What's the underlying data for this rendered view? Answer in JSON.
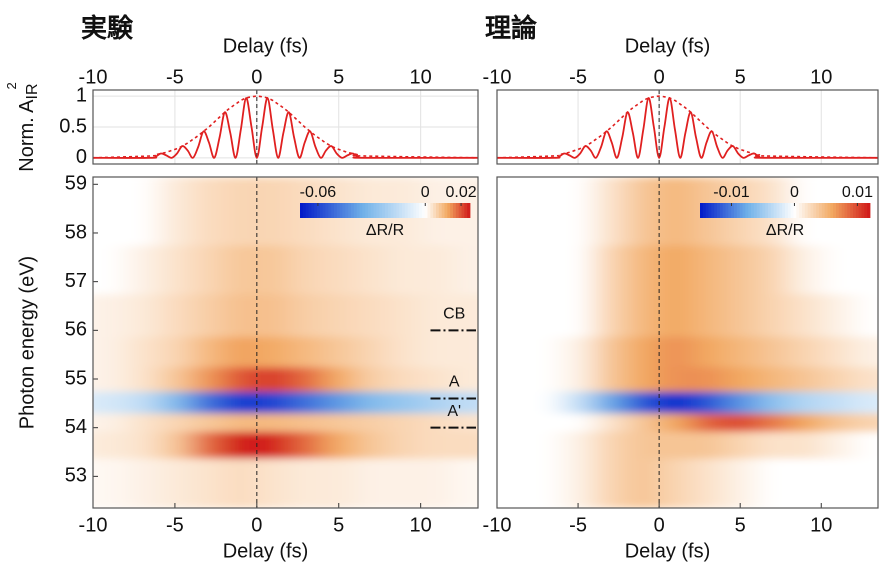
{
  "chart_data": [
    {
      "type": "line",
      "title": "実験",
      "xlabel": "Delay (fs)",
      "ylabel": "Norm. A",
      "ylabel_sub": "IR",
      "ylabel_sup": "2",
      "xlim": [
        -10,
        13.5
      ],
      "xticks": [
        -10,
        -5,
        0,
        5,
        10
      ],
      "ylim": [
        -0.1,
        1.1
      ],
      "yticks": [
        0,
        0.5,
        1
      ],
      "grid": true,
      "vline": 0,
      "x": [
        -10,
        -6.5,
        -6.175,
        -5.85,
        -5.525,
        -5.2,
        -4.875,
        -4.55,
        -4.225,
        -3.9,
        -3.575,
        -3.25,
        -2.925,
        -2.6,
        -2.275,
        -1.95,
        -1.625,
        -1.3,
        -0.975,
        -0.65,
        -0.325,
        0,
        0.325,
        0.65,
        0.975,
        1.3,
        1.625,
        1.95,
        2.275,
        2.6,
        2.925,
        3.25,
        3.575,
        3.9,
        4.225,
        4.55,
        4.875,
        5.2,
        5.525,
        5.85,
        6.175,
        6.5,
        13.5
      ],
      "series": [
        {
          "color": "#e02020",
          "values": [
            0,
            0,
            0.02,
            0.07,
            0.04,
            0,
            0.07,
            0.19,
            0.12,
            0,
            0.18,
            0.43,
            0.25,
            0,
            0.33,
            0.74,
            0.41,
            0,
            0.46,
            0.97,
            0.5,
            0,
            0.5,
            0.97,
            0.46,
            0,
            0.41,
            0.74,
            0.33,
            0,
            0.25,
            0.43,
            0.18,
            0,
            0.12,
            0.19,
            0.07,
            0,
            0.04,
            0.07,
            0.02,
            0,
            0
          ]
        },
        {
          "color": "#e02020",
          "dash": true,
          "values": [
            0,
            0.03,
            0.05,
            0.07,
            0.09,
            0.12,
            0.15,
            0.19,
            0.24,
            0.3,
            0.36,
            0.43,
            0.5,
            0.58,
            0.66,
            0.74,
            0.81,
            0.87,
            0.93,
            0.97,
            0.99,
            1,
            0.99,
            0.97,
            0.93,
            0.87,
            0.81,
            0.74,
            0.66,
            0.58,
            0.5,
            0.43,
            0.36,
            0.3,
            0.24,
            0.19,
            0.15,
            0.12,
            0.09,
            0.07,
            0.05,
            0.03,
            0
          ]
        }
      ]
    },
    {
      "type": "heatmap",
      "xlabel": "Delay (fs)",
      "ylabel": "Photon energy (eV)",
      "xlim": [
        -10,
        13.5
      ],
      "xticks": [
        -10,
        -5,
        0,
        5,
        10
      ],
      "ylim": [
        52.35,
        59.15
      ],
      "yticks": [
        53,
        54,
        55,
        56,
        57,
        58,
        59
      ],
      "vline": 0,
      "x": [
        -9,
        -7,
        -5,
        -3,
        -1,
        1,
        3,
        5,
        7,
        9,
        11,
        13
      ],
      "y": [
        53.0,
        53.75,
        54.1,
        54.5,
        55.0,
        55.5,
        56.25,
        57.25,
        58.25
      ],
      "z": [
        [
          0.001,
          0.002,
          0.003,
          0.004,
          0.005,
          0.004,
          0.003,
          0.003,
          0.002,
          0.002,
          0.002,
          0.001
        ],
        [
          0.003,
          0.004,
          0.008,
          0.018,
          0.025,
          0.024,
          0.018,
          0.012,
          0.008,
          0.006,
          0.005,
          0.005
        ],
        [
          0.002,
          0.004,
          0.006,
          0.008,
          0.01,
          0.01,
          0.009,
          0.008,
          0.007,
          0.006,
          0.005,
          0.004
        ],
        [
          -0.01,
          -0.015,
          -0.03,
          -0.05,
          -0.062,
          -0.06,
          -0.05,
          -0.04,
          -0.03,
          -0.025,
          -0.02,
          -0.015
        ],
        [
          0.002,
          0.004,
          0.008,
          0.014,
          0.02,
          0.022,
          0.018,
          0.012,
          0.007,
          0.005,
          0.004,
          0.003
        ],
        [
          0.002,
          0.004,
          0.006,
          0.01,
          0.013,
          0.012,
          0.01,
          0.008,
          0.006,
          0.004,
          0.003,
          0.003
        ],
        [
          0.002,
          0.003,
          0.005,
          0.007,
          0.009,
          0.009,
          0.007,
          0.006,
          0.005,
          0.004,
          0.003,
          0.003
        ],
        [
          0,
          0.002,
          0.004,
          0.006,
          0.008,
          0.008,
          0.006,
          0.005,
          0.004,
          0.003,
          0.003,
          0.002
        ],
        [
          0,
          0,
          0.003,
          0.005,
          0.006,
          0.006,
          0.005,
          0.004,
          0.003,
          0.003,
          0.002,
          0.002
        ]
      ],
      "clim": [
        -0.07,
        0.025
      ],
      "colormap": [
        "#0018c8",
        "#6fb0e8",
        "#ffffff",
        "#f2a860",
        "#d01818"
      ],
      "colorbar": {
        "ticks": [
          -0.06,
          0,
          0.02
        ],
        "label": "ΔR/R"
      },
      "annotations": [
        {
          "text": "CB",
          "y": 56
        },
        {
          "text": "A",
          "y": 54.6
        },
        {
          "text": "A'",
          "y": 54
        }
      ]
    },
    {
      "type": "line",
      "title": "理論",
      "xlabel": "Delay (fs)",
      "xlim": [
        -10,
        13.5
      ],
      "xticks": [
        -10,
        -5,
        0,
        5,
        10
      ],
      "ylim": [
        -0.1,
        1.1
      ],
      "grid": true,
      "vline": 0,
      "x": [
        -10,
        -6.5,
        -6.175,
        -5.85,
        -5.525,
        -5.2,
        -4.875,
        -4.55,
        -4.225,
        -3.9,
        -3.575,
        -3.25,
        -2.925,
        -2.6,
        -2.275,
        -1.95,
        -1.625,
        -1.3,
        -0.975,
        -0.65,
        -0.325,
        0,
        0.325,
        0.65,
        0.975,
        1.3,
        1.625,
        1.95,
        2.275,
        2.6,
        2.925,
        3.25,
        3.575,
        3.9,
        4.225,
        4.55,
        4.875,
        5.2,
        5.525,
        5.85,
        6.175,
        6.5,
        13.5
      ],
      "series": [
        {
          "color": "#e02020",
          "values": [
            0,
            0,
            0.02,
            0.07,
            0.04,
            0,
            0.07,
            0.19,
            0.12,
            0,
            0.18,
            0.43,
            0.25,
            0,
            0.33,
            0.74,
            0.41,
            0,
            0.46,
            0.97,
            0.5,
            0,
            0.5,
            0.97,
            0.46,
            0,
            0.41,
            0.74,
            0.33,
            0,
            0.25,
            0.43,
            0.18,
            0,
            0.12,
            0.19,
            0.07,
            0,
            0.04,
            0.07,
            0.02,
            0,
            0
          ]
        },
        {
          "color": "#e02020",
          "dash": true,
          "values": [
            0,
            0.03,
            0.05,
            0.07,
            0.09,
            0.12,
            0.15,
            0.19,
            0.24,
            0.3,
            0.36,
            0.43,
            0.5,
            0.58,
            0.66,
            0.74,
            0.81,
            0.87,
            0.93,
            0.97,
            0.99,
            1,
            0.99,
            0.97,
            0.93,
            0.87,
            0.81,
            0.74,
            0.66,
            0.58,
            0.5,
            0.43,
            0.36,
            0.3,
            0.24,
            0.19,
            0.15,
            0.12,
            0.09,
            0.07,
            0.05,
            0.03,
            0
          ]
        }
      ]
    },
    {
      "type": "heatmap",
      "xlabel": "Delay (fs)",
      "xlim": [
        -10,
        13.5
      ],
      "xticks": [
        -10,
        -5,
        0,
        5,
        10
      ],
      "ylim": [
        52.35,
        59.15
      ],
      "vline": 0,
      "x": [
        -9,
        -7,
        -5,
        -3,
        -1,
        1,
        3,
        5,
        7,
        9,
        11,
        13
      ],
      "y": [
        53.0,
        53.75,
        54.1,
        54.5,
        55.0,
        55.5,
        56.25,
        57.25,
        58.25
      ],
      "z": [
        [
          0,
          0,
          0.001,
          0.003,
          0.004,
          0.003,
          0.002,
          0.001,
          0,
          0,
          0,
          0
        ],
        [
          0,
          0,
          0.001,
          0.003,
          0.004,
          0.004,
          0.004,
          0.003,
          0.002,
          0.002,
          0.001,
          0
        ],
        [
          0,
          0,
          0,
          0.002,
          0.004,
          0.006,
          0.009,
          0.01,
          0.008,
          0.006,
          0.004,
          0.003
        ],
        [
          0,
          0,
          -0.003,
          -0.008,
          -0.012,
          -0.014,
          -0.012,
          -0.009,
          -0.006,
          -0.004,
          -0.003,
          -0.002
        ],
        [
          0,
          0,
          0.001,
          0.004,
          0.006,
          0.007,
          0.007,
          0.006,
          0.005,
          0.004,
          0.003,
          0.002
        ],
        [
          0,
          0,
          0.001,
          0.004,
          0.006,
          0.007,
          0.006,
          0.005,
          0.004,
          0.003,
          0.002,
          0.001
        ],
        [
          0,
          0,
          0,
          0.003,
          0.005,
          0.006,
          0.005,
          0.004,
          0.003,
          0.002,
          0.001,
          0
        ],
        [
          0,
          0,
          0,
          0.003,
          0.005,
          0.006,
          0.005,
          0.004,
          0.003,
          0.001,
          0,
          0
        ],
        [
          0,
          0,
          0,
          0.002,
          0.004,
          0.005,
          0.004,
          0.003,
          0.002,
          0,
          0,
          0
        ]
      ],
      "clim": [
        -0.015,
        0.012
      ],
      "colormap": [
        "#0018c8",
        "#6fb0e8",
        "#ffffff",
        "#f2a860",
        "#d01818"
      ],
      "colorbar": {
        "ticks": [
          -0.01,
          0,
          0.01
        ],
        "label": "ΔR/R"
      }
    }
  ]
}
